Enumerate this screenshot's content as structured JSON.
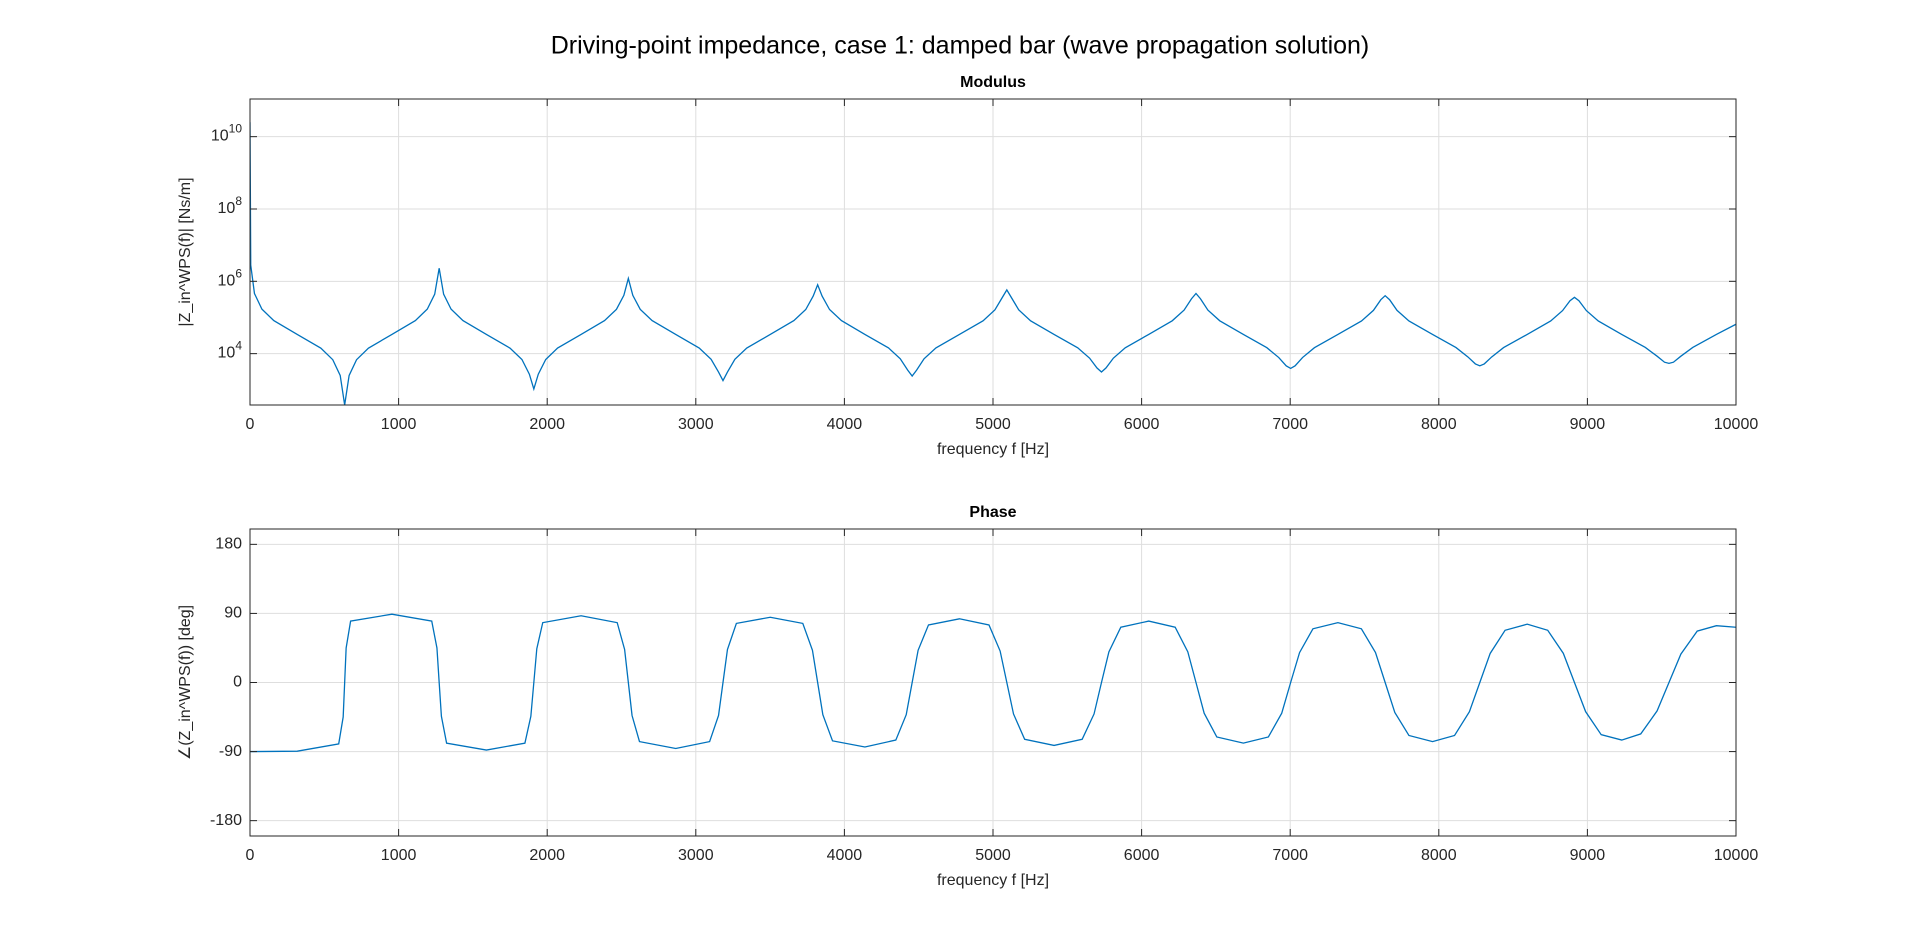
{
  "title": "Driving-point impedance, case 1: damped bar (wave propagation solution)",
  "chart_data": [
    {
      "type": "line",
      "title": "Modulus",
      "xlabel": "frequency f [Hz]",
      "ylabel": "|Z_in^WPS(f)|   [Ns/m]",
      "log_y": true,
      "grid": true,
      "color": "#0072bd",
      "xlim": [
        0,
        10000
      ],
      "xticks": [
        0,
        1000,
        2000,
        3000,
        4000,
        5000,
        6000,
        7000,
        8000,
        9000,
        10000
      ],
      "ylim": [
        380,
        110000000000
      ],
      "yticks": [
        {
          "value": 10000,
          "label": "10^4"
        },
        {
          "value": 1000000,
          "label": "10^6"
        },
        {
          "value": 100000000,
          "label": "10^8"
        },
        {
          "value": 10000000000,
          "label": "10^10"
        }
      ],
      "x": [
        0,
        5,
        30,
        80,
        160,
        318,
        477,
        557,
        607,
        637,
        667,
        717,
        797,
        955,
        1113,
        1193,
        1243,
        1273,
        1303,
        1353,
        1433,
        1591,
        1750,
        1830,
        1880,
        1910,
        1940,
        1990,
        2070,
        2228,
        2386,
        2466,
        2516,
        2546,
        2576,
        2626,
        2706,
        2865,
        3023,
        3103,
        3153,
        3183,
        3213,
        3263,
        3343,
        3501,
        3660,
        3740,
        3790,
        3820,
        3850,
        3900,
        3980,
        4138,
        4297,
        4376,
        4426,
        4456,
        4486,
        4536,
        4616,
        4774,
        4933,
        5013,
        5063,
        5093,
        5123,
        5173,
        5253,
        5411,
        5570,
        5650,
        5700,
        5730,
        5760,
        5810,
        5890,
        6048,
        6206,
        6286,
        6336,
        6366,
        6396,
        6446,
        6526,
        6685,
        6843,
        6923,
        6973,
        7003,
        7033,
        7083,
        7163,
        7321,
        7480,
        7560,
        7610,
        7639,
        7669,
        7719,
        7799,
        7958,
        8116,
        8196,
        8246,
        8276,
        8306,
        8356,
        8436,
        8595,
        8753,
        8833,
        8883,
        8913,
        8943,
        8993,
        9073,
        9231,
        9390,
        9469,
        9519,
        9549,
        9579,
        9629,
        9709,
        9868,
        10000
      ],
      "values": [
        25000000000,
        2800000,
        460000,
        170000,
        82000,
        34000,
        14200,
        6800,
        2500,
        380,
        2500,
        6800,
        14200,
        34000,
        82000,
        170000,
        440000,
        2300000,
        440000,
        170000,
        82000,
        34000,
        14200,
        6900,
        2700,
        1050,
        2700,
        6900,
        14300,
        34000,
        82000,
        168000,
        410000,
        1200000,
        410000,
        168000,
        82000,
        34000,
        14300,
        7000,
        3100,
        1800,
        3100,
        7000,
        14300,
        34000,
        82000,
        166000,
        390000,
        800000,
        390000,
        166000,
        82000,
        34000,
        14400,
        7200,
        3500,
        2400,
        3500,
        7200,
        14400,
        34000,
        81000,
        163000,
        360000,
        580000,
        360000,
        163000,
        81000,
        34000,
        14500,
        7500,
        4000,
        3100,
        4000,
        7500,
        14500,
        34000,
        81000,
        160000,
        330000,
        460000,
        330000,
        160000,
        81000,
        34000,
        14600,
        7800,
        4600,
        3900,
        4600,
        7800,
        14600,
        34000,
        80000,
        157000,
        310000,
        400000,
        310000,
        157000,
        80000,
        34000,
        14700,
        8100,
        5200,
        4600,
        5200,
        8100,
        14700,
        34000,
        80000,
        155000,
        290000,
        360000,
        290000,
        155000,
        80000,
        34000,
        14800,
        8500,
        5800,
        5400,
        5800,
        8500,
        14800,
        34000,
        65000
      ]
    },
    {
      "type": "line",
      "title": "Phase",
      "xlabel": "frequency f [Hz]",
      "ylabel": "∠(Z_in^WPS(f))   [deg]",
      "log_y": false,
      "grid": true,
      "color": "#0072bd",
      "xlim": [
        0,
        10000
      ],
      "xticks": [
        0,
        1000,
        2000,
        3000,
        4000,
        5000,
        6000,
        7000,
        8000,
        9000,
        10000
      ],
      "ylim": [
        -200,
        200
      ],
      "yticks": [
        -180,
        -90,
        0,
        90,
        180
      ],
      "x": [
        0,
        318,
        597,
        627,
        637,
        647,
        677,
        955,
        1223,
        1258,
        1273,
        1288,
        1323,
        1591,
        1850,
        1890,
        1910,
        1930,
        1970,
        2228,
        2471,
        2521,
        2546,
        2571,
        2621,
        2865,
        3093,
        3153,
        3183,
        3213,
        3273,
        3501,
        3720,
        3785,
        3820,
        3855,
        3920,
        4138,
        4346,
        4416,
        4456,
        4496,
        4566,
        4774,
        4973,
        5048,
        5093,
        5138,
        5213,
        5411,
        5600,
        5680,
        5730,
        5780,
        5860,
        6048,
        6226,
        6311,
        6366,
        6421,
        6506,
        6685,
        6853,
        6943,
        7003,
        7063,
        7153,
        7321,
        7479,
        7574,
        7639,
        7704,
        7799,
        7958,
        8106,
        8206,
        8276,
        8346,
        8446,
        8595,
        8733,
        8838,
        8913,
        8988,
        9093,
        9231,
        9359,
        9469,
        9549,
        9629,
        9739,
        9868,
        10000
      ],
      "values": [
        -90,
        -89.5,
        -80,
        -45,
        0,
        45,
        80,
        89,
        80,
        45,
        0,
        -44,
        -79,
        -88,
        -79,
        -44,
        0,
        44,
        78,
        87,
        78,
        43,
        0,
        -43,
        -77,
        -86,
        -77,
        -43,
        0,
        43,
        77,
        85,
        77,
        42,
        0,
        -42,
        -76,
        -84,
        -75,
        -42,
        0,
        42,
        75,
        83,
        75,
        41,
        0,
        -41,
        -74,
        -82,
        -74,
        -41,
        0,
        40,
        72,
        80,
        72,
        40,
        0,
        -40,
        -71,
        -79,
        -71,
        -40,
        0,
        39,
        70,
        78,
        70,
        39,
        0,
        -39,
        -69,
        -77,
        -69,
        -38,
        0,
        38,
        68,
        76,
        68,
        38,
        0,
        -38,
        -68,
        -75,
        -67,
        -37,
        0,
        37,
        67,
        74,
        72
      ]
    }
  ]
}
